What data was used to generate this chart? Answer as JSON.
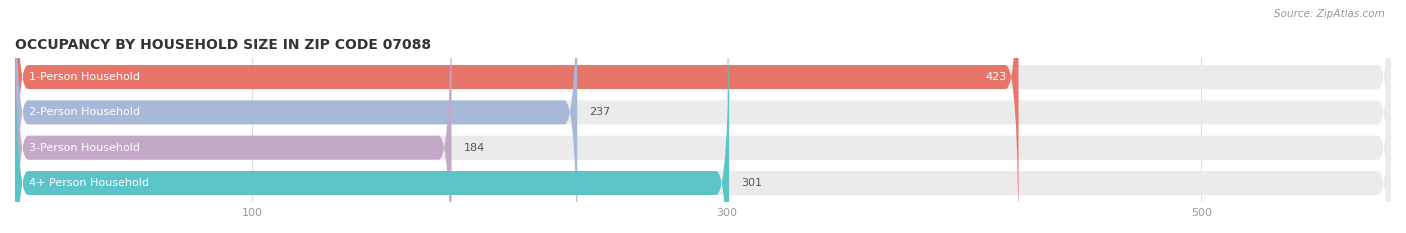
{
  "title": "OCCUPANCY BY HOUSEHOLD SIZE IN ZIP CODE 07088",
  "source_text": "Source: ZipAtlas.com",
  "categories": [
    "1-Person Household",
    "2-Person Household",
    "3-Person Household",
    "4+ Person Household"
  ],
  "values": [
    423,
    237,
    184,
    301
  ],
  "bar_colors": [
    "#E8756A",
    "#A8B8D8",
    "#C4A8C8",
    "#5BC4C8"
  ],
  "bar_bg_color": "#EBEBEB",
  "xlim": [
    0,
    580
  ],
  "xticks": [
    100,
    300,
    500
  ],
  "figsize": [
    14.06,
    2.33
  ],
  "dpi": 100,
  "title_fontsize": 10,
  "label_fontsize": 8,
  "value_fontsize": 8,
  "bar_height": 0.68,
  "background_color": "#FFFFFF",
  "grid_color": "#DDDDDD",
  "tick_color": "#999999",
  "title_color": "#333333",
  "source_color": "#999999"
}
